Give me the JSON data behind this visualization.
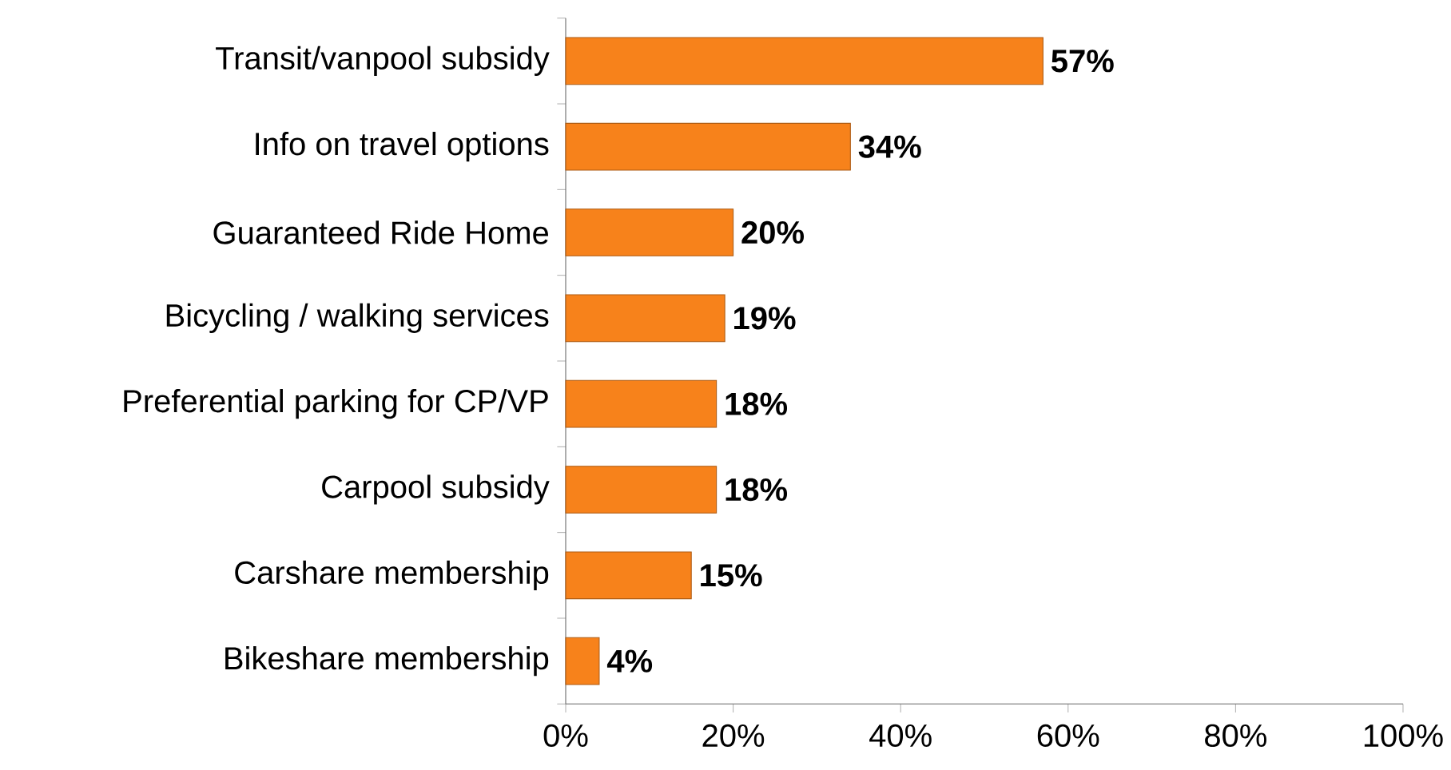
{
  "chart_data": {
    "type": "bar",
    "orientation": "horizontal",
    "categories": [
      "Transit/vanpool subsidy",
      "Info on travel options",
      "Guaranteed Ride Home",
      "Bicycling / walking services",
      "Preferential parking for CP/VP",
      "Carpool subsidy",
      "Carshare membership",
      "Bikeshare membership"
    ],
    "values": [
      57,
      34,
      20,
      19,
      18,
      18,
      15,
      4
    ],
    "value_labels": [
      "57%",
      "34%",
      "20%",
      "19%",
      "18%",
      "18%",
      "15%",
      "4%"
    ],
    "color": "#f7821b",
    "xlim": [
      0,
      100
    ],
    "xticks": [
      {
        "value": 0,
        "label": "0%"
      },
      {
        "value": 20,
        "label": "20%"
      },
      {
        "value": 40,
        "label": "40%"
      },
      {
        "value": 60,
        "label": "60%"
      },
      {
        "value": 80,
        "label": "80%"
      },
      {
        "value": 100,
        "label": "100%"
      }
    ],
    "grid": false
  }
}
